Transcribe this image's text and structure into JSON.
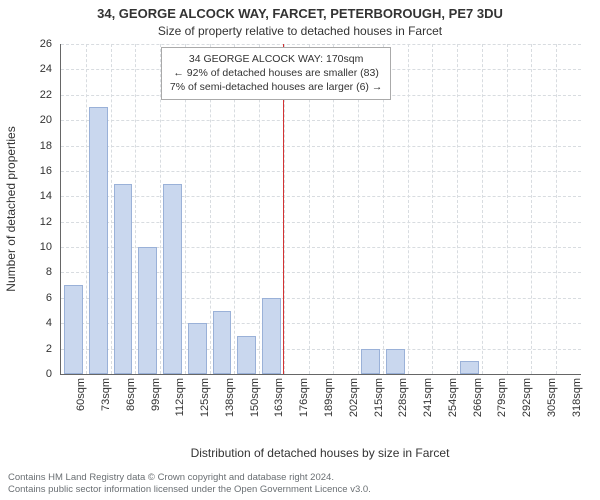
{
  "chart": {
    "type": "histogram",
    "title_main": "34, GEORGE ALCOCK WAY, FARCET, PETERBOROUGH, PE7 3DU",
    "title_sub": "Size of property relative to detached houses in Farcet",
    "title_fontsize": 13,
    "subtitle_fontsize": 12,
    "background_color": "#ffffff",
    "grid_color": "#d8dce0",
    "axis_color": "#666666",
    "bar_fill": "#c9d7ee",
    "bar_stroke": "#9ab1d8",
    "ref_line_color": "#d33333",
    "ref_line_value": 170,
    "y": {
      "label": "Number of detached properties",
      "lim": [
        0,
        26
      ],
      "tick_step": 2,
      "ticks": [
        0,
        2,
        4,
        6,
        8,
        10,
        12,
        14,
        16,
        18,
        20,
        22,
        24,
        26
      ],
      "label_fontsize": 12,
      "tick_fontsize": 11,
      "tick_color": "#333333"
    },
    "x": {
      "label": "Distribution of detached houses by size in Farcet",
      "categories": [
        "60sqm",
        "73sqm",
        "86sqm",
        "99sqm",
        "112sqm",
        "125sqm",
        "138sqm",
        "150sqm",
        "163sqm",
        "176sqm",
        "189sqm",
        "202sqm",
        "215sqm",
        "228sqm",
        "241sqm",
        "254sqm",
        "266sqm",
        "279sqm",
        "292sqm",
        "305sqm",
        "318sqm"
      ],
      "label_fontsize": 12,
      "tick_fontsize": 11,
      "tick_color": "#333333"
    },
    "values": [
      7,
      21,
      15,
      10,
      15,
      4,
      5,
      3,
      6,
      0,
      0,
      0,
      2,
      2,
      0,
      0,
      1,
      0,
      0,
      0,
      0
    ],
    "annotation": {
      "lines": [
        "34 GEORGE ALCOCK WAY: 170sqm",
        "← 92% of detached houses are smaller (83)",
        "7% of semi-detached houses are larger (6) →"
      ],
      "border_color": "#aaaaaa",
      "fontsize": 10.5
    },
    "footer": {
      "line1": "Contains HM Land Registry data © Crown copyright and database right 2024.",
      "line2": "Contains public sector information licensed under the Open Government Licence v3.0.",
      "color": "#6a6f73",
      "fontsize": 9.5
    }
  }
}
